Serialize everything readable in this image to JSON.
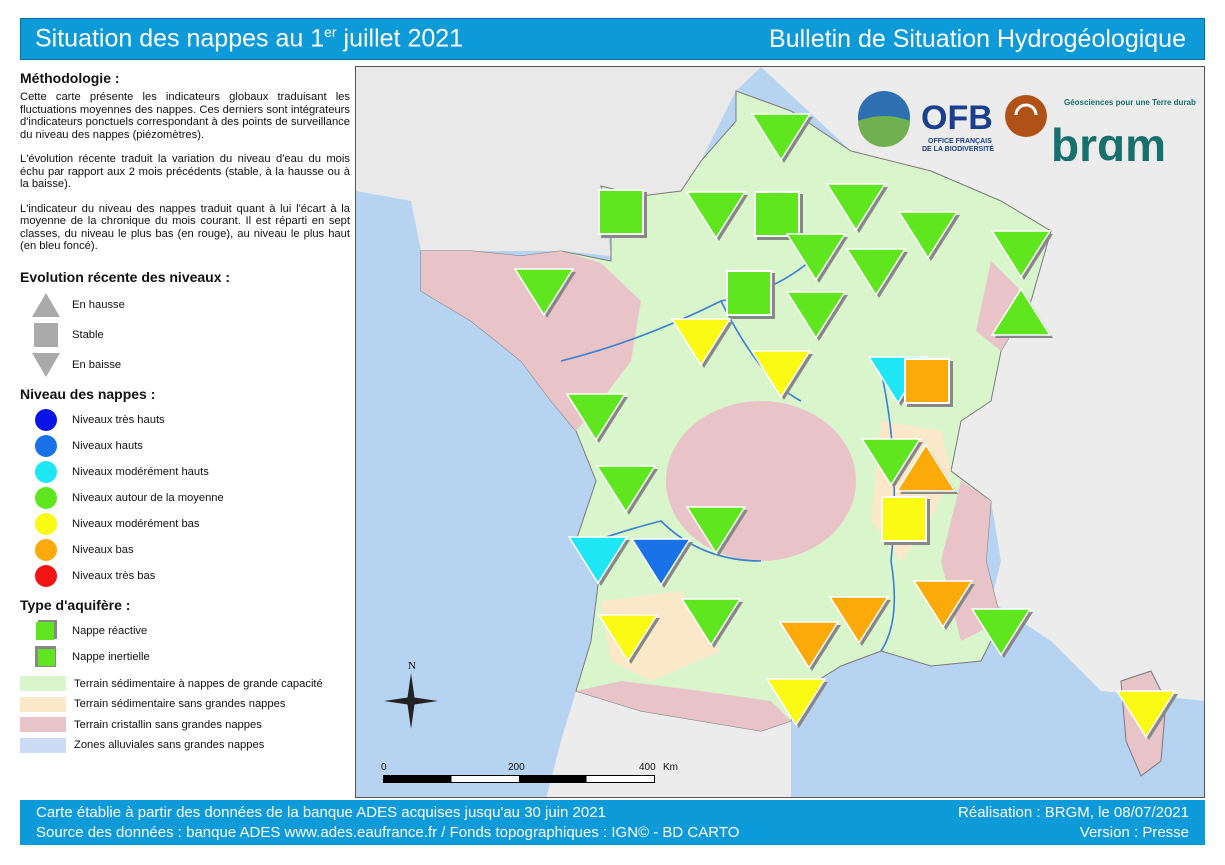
{
  "header": {
    "title_pre": "Situation des nappes au 1",
    "title_sup": "er",
    "title_post": " juillet 2021",
    "right": "Bulletin de Situation Hydrogéologique"
  },
  "methodology": {
    "title": "Méthodologie :",
    "paragraphs": [
      "Cette carte présente les indicateurs globaux traduisant les fluctuations moyennes des nappes. Ces derniers sont intégrateurs d'indicateurs ponctuels correspondant à des points de surveillance du niveau des nappes (piézomètres).",
      "L'évolution récente traduit la variation du niveau d'eau du mois échu par rapport aux 2 mois précédents (stable, à la hausse ou à la baisse).",
      "L'indicateur du niveau des nappes traduit quant à lui l'écart à la moyenne de la chronique du mois courant. Il est réparti en sept classes, du niveau le plus bas (en rouge), au niveau le plus haut (en bleu foncé)."
    ]
  },
  "evolution": {
    "title": "Evolution récente des niveaux :",
    "items": [
      {
        "icon": "triangle-up-icon",
        "label": "En hausse"
      },
      {
        "icon": "square-icon",
        "label": "Stable"
      },
      {
        "icon": "triangle-down-icon",
        "label": "En baisse"
      }
    ]
  },
  "levels": {
    "title": "Niveau des nappes :",
    "items": [
      {
        "label": "Niveaux très hauts",
        "color": "#0a14e6"
      },
      {
        "label": "Niveaux hauts",
        "color": "#1a72e8"
      },
      {
        "label": "Niveaux modérément hauts",
        "color": "#1ee6f5"
      },
      {
        "label": "Niveaux autour de la moyenne",
        "color": "#5fe61e"
      },
      {
        "label": "Niveaux modérément bas",
        "color": "#fafa14"
      },
      {
        "label": "Niveaux bas",
        "color": "#fbaa0a"
      },
      {
        "label": "Niveaux très bas",
        "color": "#f51414"
      }
    ]
  },
  "aquifer": {
    "title": "Type d'aquifère :",
    "items": [
      {
        "label": "Nappe réactive"
      },
      {
        "label": "Nappe inertielle"
      }
    ],
    "terrains": [
      {
        "label": "Terrain sédimentaire à nappes de grande capacité",
        "color": "#d9f5cc"
      },
      {
        "label": "Terrain sédimentaire sans grandes nappes",
        "color": "#fbe8c8"
      },
      {
        "label": "Terrain cristallin sans grandes nappes",
        "color": "#e8c4c8"
      },
      {
        "label": "Zones alluviales sans grandes nappes",
        "color": "#cddcf5"
      }
    ]
  },
  "map": {
    "north": "N",
    "scale": {
      "labels": [
        "0",
        "200",
        "400"
      ],
      "unit": "Km"
    },
    "logos": {
      "ofb": "OFB",
      "ofb_sub1": "OFFICE FRANÇAIS",
      "ofb_sub2": "DE LA BIODIVERSITÉ",
      "brgm": "brgm",
      "brgm_tag": "Géosciences pour une Terre durable"
    },
    "markers": [
      {
        "evo": "down",
        "level": "average"
      },
      {
        "evo": "stable",
        "level": "average"
      },
      {
        "evo": "down",
        "level": "average"
      },
      {
        "evo": "stable",
        "level": "average"
      },
      {
        "evo": "down",
        "level": "average"
      },
      {
        "evo": "down",
        "level": "average"
      },
      {
        "evo": "down",
        "level": "average"
      },
      {
        "evo": "down",
        "level": "average"
      },
      {
        "evo": "down",
        "level": "average"
      },
      {
        "evo": "up",
        "level": "average"
      },
      {
        "evo": "down",
        "level": "average"
      },
      {
        "evo": "stable",
        "level": "average"
      },
      {
        "evo": "down",
        "level": "average"
      },
      {
        "evo": "down",
        "level": "moderately-low"
      },
      {
        "evo": "down",
        "level": "moderately-low"
      },
      {
        "evo": "down",
        "level": "moderately-high"
      },
      {
        "evo": "stable",
        "level": "low"
      },
      {
        "evo": "down",
        "level": "average"
      },
      {
        "evo": "down",
        "level": "average"
      },
      {
        "evo": "up",
        "level": "low"
      },
      {
        "evo": "down",
        "level": "average"
      },
      {
        "evo": "stable",
        "level": "moderately-low"
      },
      {
        "evo": "down",
        "level": "average"
      },
      {
        "evo": "down",
        "level": "moderately-high"
      },
      {
        "evo": "down",
        "level": "high"
      },
      {
        "evo": "down",
        "level": "moderately-low"
      },
      {
        "evo": "down",
        "level": "average"
      },
      {
        "evo": "down",
        "level": "low"
      },
      {
        "evo": "down",
        "level": "low"
      },
      {
        "evo": "down",
        "level": "low"
      },
      {
        "evo": "down",
        "level": "average"
      },
      {
        "evo": "down",
        "level": "moderately-low"
      },
      {
        "evo": "down",
        "level": "moderately-low"
      }
    ]
  },
  "footer": {
    "left1": "Carte établie à partir des données de la banque ADES acquises jusqu'au 30 juin 2021",
    "left2": "Source des données : banque ADES www.ades.eaufrance.fr / Fonds topographiques : IGN© - BD CARTO",
    "right1": "Réalisation : BRGM, le 08/07/2021",
    "right2": "Version : Presse"
  }
}
